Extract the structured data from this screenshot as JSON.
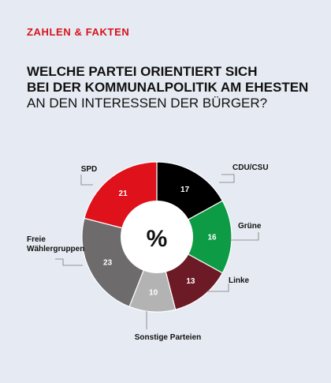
{
  "header": {
    "kicker": "ZAHLEN & FAKTEN",
    "title_line1": "WELCHE PARTEI ORIENTIERT SICH",
    "title_line2": "BEI DER KOMMUNALPOLITIK AM EHESTEN",
    "title_line3": "AN DEN INTERESSEN DER BÜRGER?"
  },
  "chart_data": {
    "type": "pie",
    "donut": true,
    "center_label": "%",
    "slices": [
      {
        "label": "CDU/CSU",
        "value": 17,
        "color": "#000000"
      },
      {
        "label": "Grüne",
        "value": 16,
        "color": "#0e9b45"
      },
      {
        "label": "Linke",
        "value": 13,
        "color": "#6c1a25"
      },
      {
        "label": "Sonstige Parteien",
        "value": 10,
        "color": "#b3b3b3"
      },
      {
        "label": "Freie Wählergruppen",
        "value": 23,
        "color": "#6d6b6c"
      },
      {
        "label": "SPD",
        "value": 21,
        "color": "#df111b"
      }
    ]
  }
}
